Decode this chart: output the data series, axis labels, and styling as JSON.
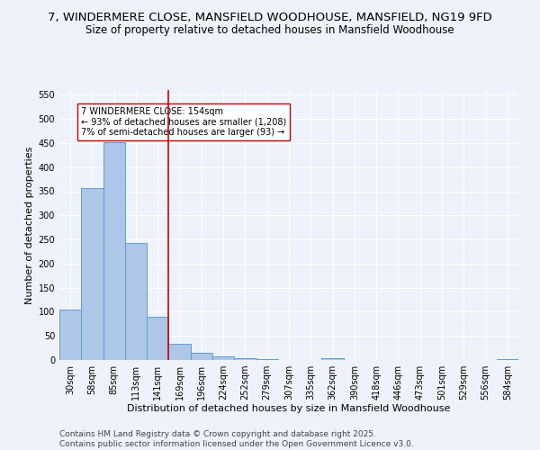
{
  "title": "7, WINDERMERE CLOSE, MANSFIELD WOODHOUSE, MANSFIELD, NG19 9FD",
  "subtitle": "Size of property relative to detached houses in Mansfield Woodhouse",
  "xlabel": "Distribution of detached houses by size in Mansfield Woodhouse",
  "ylabel": "Number of detached properties",
  "categories": [
    "30sqm",
    "58sqm",
    "85sqm",
    "113sqm",
    "141sqm",
    "169sqm",
    "196sqm",
    "224sqm",
    "252sqm",
    "279sqm",
    "307sqm",
    "335sqm",
    "362sqm",
    "390sqm",
    "418sqm",
    "446sqm",
    "473sqm",
    "501sqm",
    "529sqm",
    "556sqm",
    "584sqm"
  ],
  "values": [
    105,
    357,
    452,
    243,
    90,
    33,
    15,
    7,
    3,
    1,
    0,
    0,
    3,
    0,
    0,
    0,
    0,
    0,
    0,
    0,
    2
  ],
  "bar_color": "#aec6e8",
  "bar_edgecolor": "#5a9fd4",
  "vline_x": 4.5,
  "vline_color": "#cc0000",
  "annotation_text": "7 WINDERMERE CLOSE: 154sqm\n← 93% of detached houses are smaller (1,208)\n7% of semi-detached houses are larger (93) →",
  "annotation_box_color": "#ffffff",
  "annotation_box_edgecolor": "#cc0000",
  "ylim": [
    0,
    560
  ],
  "yticks": [
    0,
    50,
    100,
    150,
    200,
    250,
    300,
    350,
    400,
    450,
    500,
    550
  ],
  "footer": "Contains HM Land Registry data © Crown copyright and database right 2025.\nContains public sector information licensed under the Open Government Licence v3.0.",
  "bg_color": "#eef2fa",
  "grid_color": "#ffffff",
  "title_fontsize": 9.5,
  "subtitle_fontsize": 8.5,
  "axis_label_fontsize": 8,
  "tick_fontsize": 7,
  "annotation_fontsize": 7,
  "footer_fontsize": 6.5
}
